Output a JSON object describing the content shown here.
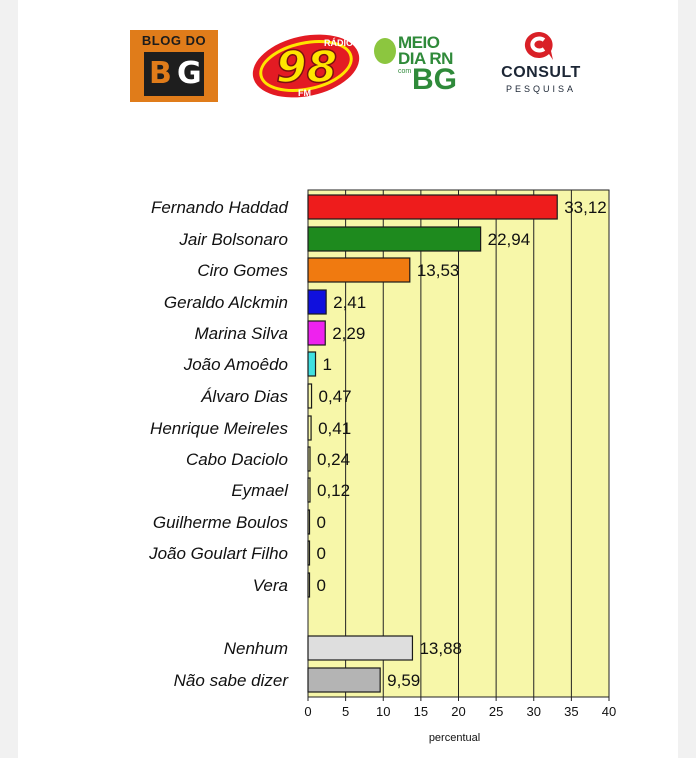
{
  "logos": {
    "blog": {
      "line1": "BLOG DO",
      "b": "B",
      "g": "G"
    },
    "radio": {
      "small": "RÁDIO",
      "number": "98",
      "fm": "FM"
    },
    "meio": {
      "line1": "MEIO",
      "line2": "DIA RN",
      "com": "com",
      "bg": "BG"
    },
    "consult": {
      "word": "CONSULT",
      "sub": "PESQUISA"
    }
  },
  "colors": {
    "plot_background": "#f7f7a9",
    "grid": "#222222",
    "bar_outline": "#1a1a1a"
  },
  "chart_data": {
    "type": "bar",
    "orientation": "horizontal",
    "xlabel": "percentual",
    "xlim": [
      0,
      40
    ],
    "xticks": [
      0,
      5,
      10,
      15,
      20,
      25,
      30,
      35,
      40
    ],
    "grid": "vertical",
    "categories": [
      "Fernando Haddad",
      "Jair Bolsonaro",
      "Ciro Gomes",
      "Geraldo Alckmin",
      "Marina Silva",
      "João Amoêdo",
      "Álvaro Dias",
      "Henrique Meireles",
      "Cabo Daciolo",
      "Eymael",
      "Guilherme Boulos",
      "João Goulart Filho",
      "Vera",
      "Nenhum",
      "Não sabe dizer"
    ],
    "values": [
      33.12,
      22.94,
      13.53,
      2.41,
      2.29,
      1,
      0.47,
      0.41,
      0.24,
      0.12,
      0,
      0,
      0,
      13.88,
      9.59
    ],
    "value_labels": [
      "33,12",
      "22,94",
      "13,53",
      "2,41",
      "2,29",
      "1",
      "0,47",
      "0,41",
      "0,24",
      "0,12",
      "0",
      "0",
      "0",
      "13,88",
      "9,59"
    ],
    "bar_colors": [
      "#ee1c1c",
      "#1e8a1e",
      "#f07a10",
      "#1010dd",
      "#ee22ee",
      "#40e0e0",
      "#f7f7a9",
      "#f7f7a9",
      "#f7f7a9",
      "#f7f7a9",
      "#f7f7a9",
      "#f7f7a9",
      "#f7f7a9",
      "#dedede",
      "#b4b4b4"
    ]
  }
}
